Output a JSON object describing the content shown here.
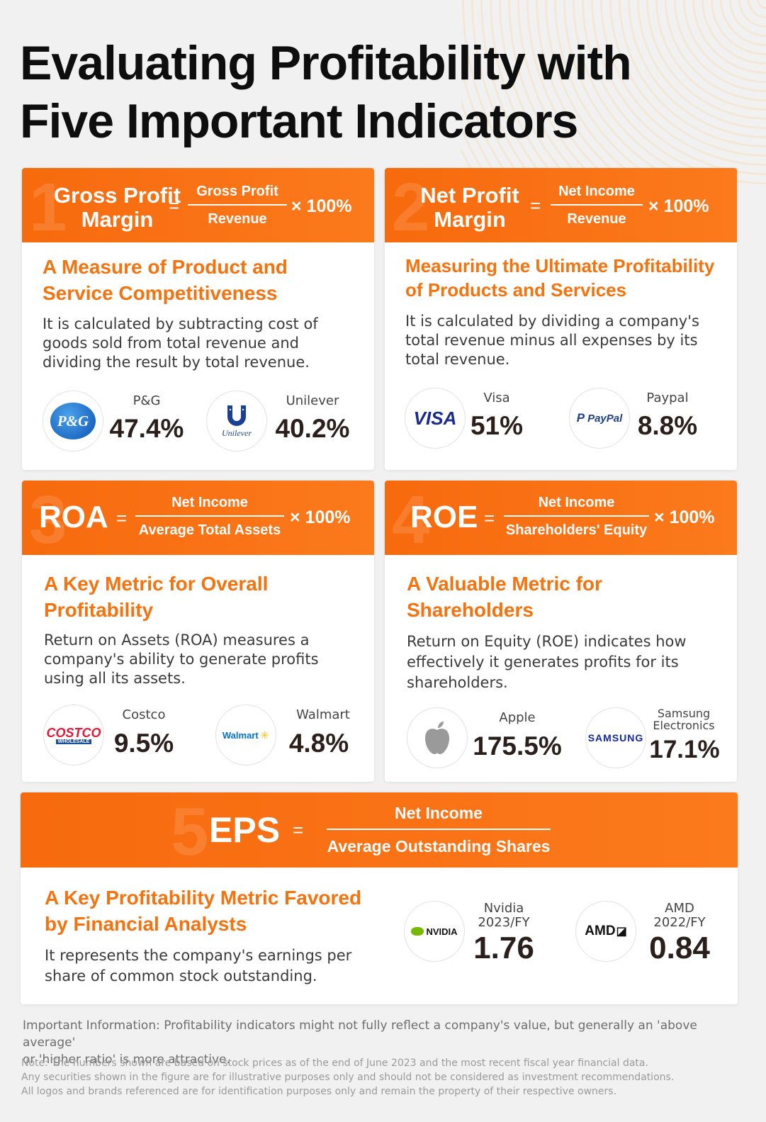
{
  "title_line1": "Evaluating Profitability with",
  "title_line2": "Five Important Indicators",
  "colors": {
    "accent": "#f76a0e",
    "subtitle": "#f4730f",
    "background": "#f1f1f1"
  },
  "cards": [
    {
      "number": "1",
      "name_line1": "Gross Profit",
      "name_line2": "Margin",
      "eq": "=",
      "numerator": "Gross Profit",
      "denominator": "Revenue",
      "times": "× 100%",
      "subtitle_line1": "A Measure of Product and",
      "subtitle_line2": "Service Competitiveness",
      "desc_lines": [
        "It is calculated by subtracting cost of",
        "goods sold from total revenue and",
        "dividing the result by total revenue."
      ],
      "companies": [
        {
          "name": "P&G",
          "value": "47.4%",
          "logo": "P&G",
          "icon": "pg-logo-icon"
        },
        {
          "name": "Unilever",
          "value": "40.2%",
          "logo": "Unilever",
          "icon": "unilever-logo-icon"
        }
      ]
    },
    {
      "number": "2",
      "name_line1": "Net Profit",
      "name_line2": "Margin",
      "eq": "=",
      "numerator": "Net Income",
      "denominator": "Revenue",
      "times": "× 100%",
      "subtitle_line1": "Measuring the Ultimate Profitability",
      "subtitle_line2": "of Products and Services",
      "desc_lines": [
        "It is calculated by dividing a company's",
        "total revenue minus all expenses by its",
        "total revenue."
      ],
      "companies": [
        {
          "name": "Visa",
          "value": "51%",
          "logo": "VISA",
          "icon": "visa-logo-icon"
        },
        {
          "name": "Paypal",
          "value": "8.8%",
          "logo": "PayPal",
          "icon": "paypal-logo-icon"
        }
      ]
    },
    {
      "number": "3",
      "name_line1": "ROA",
      "eq": "=",
      "numerator": "Net Income",
      "denominator": "Average Total Assets",
      "times": "× 100%",
      "subtitle_line1": "A Key Metric for Overall",
      "subtitle_line2": "Profitability",
      "desc_lines": [
        "Return on Assets (ROA) measures a",
        "company's ability to generate profits",
        "using all its assets."
      ],
      "companies": [
        {
          "name": "Costco",
          "value": "9.5%",
          "logo": "COSTCO",
          "logo_sub": "WHOLESALE",
          "icon": "costco-logo-icon"
        },
        {
          "name": "Walmart",
          "value": "4.8%",
          "logo": "Walmart",
          "icon": "walmart-logo-icon"
        }
      ]
    },
    {
      "number": "4",
      "name_line1": "ROE",
      "eq": "=",
      "numerator": "Net Income",
      "denominator": "Shareholders' Equity",
      "times": "× 100%",
      "subtitle_line1": "A Valuable Metric for",
      "subtitle_line2": "Shareholders",
      "desc_lines": [
        "Return on Equity (ROE) indicates how",
        "effectively it generates profits for its",
        "shareholders."
      ],
      "companies": [
        {
          "name": "Apple",
          "value": "175.5%",
          "icon": "apple-logo-icon"
        },
        {
          "name_line1": "Samsung",
          "name_line2": "Electronics",
          "value": "17.1%",
          "logo": "SAMSUNG",
          "icon": "samsung-logo-icon"
        }
      ]
    },
    {
      "number": "5",
      "name_line1": "EPS",
      "eq": "=",
      "numerator": "Net Income",
      "denominator": "Average Outstanding Shares",
      "subtitle_line1": "A Key Profitability Metric Favored",
      "subtitle_line2": "by Financial Analysts",
      "desc_lines": [
        "It represents the company's earnings per",
        "share of common stock outstanding."
      ],
      "companies": [
        {
          "name_line1": "Nvidia",
          "name_line2": "2023/FY",
          "value": "1.76",
          "logo": "NVIDIA",
          "icon": "nvidia-logo-icon"
        },
        {
          "name_line1": "AMD",
          "name_line2": "2022/FY",
          "value": "0.84",
          "logo": "AMD",
          "icon": "amd-logo-icon"
        }
      ]
    }
  ],
  "important_line1": "Important Information: Profitability indicators might not fully reflect a company's value, but generally an 'above average'",
  "important_line2": "or 'higher ratio' is more attractive.",
  "note_lines": [
    "Note: The numbers shown are based on stock prices as of the end of June 2023 and the most recent fiscal year financial data.",
    "Any securities shown in the figure are for illustrative purposes only and should not be considered as investment recommendations.",
    "All logos and brands referenced are for identification purposes only and remain the property of their respective owners."
  ]
}
